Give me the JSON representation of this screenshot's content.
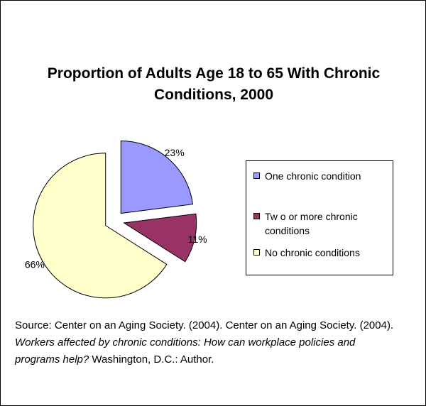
{
  "chart_data": {
    "type": "pie",
    "title": "Proportion of Adults Age 18 to 65 With Chronic Conditions, 2000",
    "categories": [
      "One chronic condition",
      "Two or more chronic conditions",
      "No chronic conditions"
    ],
    "values": [
      23,
      11,
      66
    ],
    "value_labels": [
      "23%",
      "11%",
      "66%"
    ],
    "colors": [
      "#9999ff",
      "#993366",
      "#ffffcc"
    ],
    "exploded": true,
    "legend": {
      "placement": "right",
      "entries": [
        "One chronic condition",
        "Tw o or more chronic conditions",
        "No chronic conditions"
      ]
    }
  },
  "source": {
    "prefix": "Source:  Center on an Aging Society.  (2004).  Center on an Aging Society.  (2004).  ",
    "italic": "Workers affected by chronic conditions:  How can workplace policies and programs help?",
    "suffix": "  Washington, D.C.: Author."
  }
}
